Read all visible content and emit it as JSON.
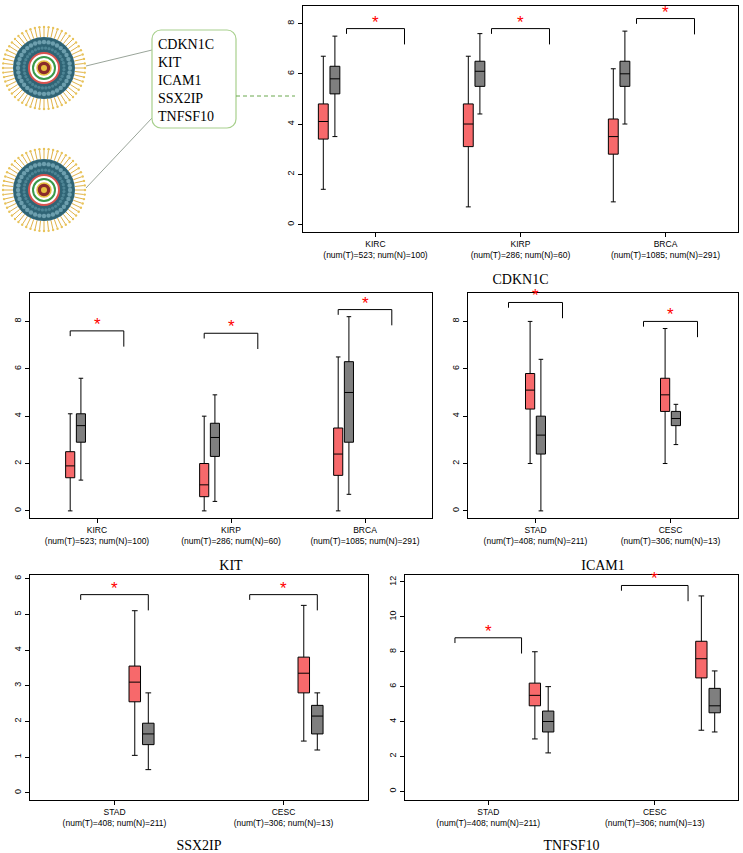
{
  "diagram": {
    "genes": [
      "CDKN1C",
      "KIT",
      "ICAM1",
      "SSX2IP",
      "TNFSF10"
    ]
  },
  "chart_data": [
    {
      "type": "box",
      "title": "CDKN1C",
      "categories": [
        "KIRC\n(num(T)=523; num(N)=100)",
        "KIRP\n(num(T)=286; num(N)=60)",
        "BRCA\n(num(T)=1085; num(N)=291)"
      ],
      "series": [
        {
          "color": "#F7696B",
          "q1": [
            3.4,
            3.1,
            2.8
          ],
          "median": [
            4.1,
            4.0,
            3.5
          ],
          "q3": [
            4.8,
            4.8,
            4.2
          ],
          "lowerfence": [
            1.4,
            0.7,
            0.9
          ],
          "upperfence": [
            6.7,
            6.7,
            6.2
          ]
        },
        {
          "color": "#7F7F7F",
          "q1": [
            5.2,
            5.5,
            5.5
          ],
          "median": [
            5.8,
            6.1,
            6.0
          ],
          "q3": [
            6.3,
            6.5,
            6.5
          ],
          "lowerfence": [
            3.5,
            4.4,
            4.0
          ],
          "upperfence": [
            7.5,
            7.6,
            7.7
          ]
        }
      ],
      "significance": {
        "y": [
          7.8,
          7.8,
          8.2
        ],
        "labels": [
          "*",
          "*",
          "*"
        ],
        "color": "#FF0000"
      },
      "ylim": [
        -0.3,
        8.7
      ],
      "yticks": [
        0,
        2,
        4,
        6,
        8
      ],
      "grid": false
    },
    {
      "type": "box",
      "title": "KIT",
      "categories": [
        "KIRC\n(num(T)=523; num(N)=100)",
        "KIRP\n(num(T)=286; num(N)=60)",
        "BRCA\n(num(T)=1085; num(N)=291)"
      ],
      "series": [
        {
          "color": "#F7696B",
          "q1": [
            1.4,
            0.6,
            1.5
          ],
          "median": [
            1.9,
            1.1,
            2.4
          ],
          "q3": [
            2.5,
            2.0,
            3.5
          ],
          "lowerfence": [
            0,
            0,
            0
          ],
          "upperfence": [
            4.1,
            4.0,
            6.5
          ]
        },
        {
          "color": "#7F7F7F",
          "q1": [
            2.9,
            2.3,
            2.9
          ],
          "median": [
            3.6,
            3.1,
            5.0
          ],
          "q3": [
            4.1,
            3.7,
            6.3
          ],
          "lowerfence": [
            1.3,
            0.4,
            0.7
          ],
          "upperfence": [
            5.6,
            4.9,
            8.2
          ]
        }
      ],
      "significance": {
        "y": [
          7.6,
          7.5,
          8.5
        ],
        "labels": [
          "*",
          "*",
          "*"
        ],
        "color": "#FF0000"
      },
      "ylim": [
        -0.3,
        9.2
      ],
      "yticks": [
        0,
        2,
        4,
        6,
        8
      ],
      "grid": false
    },
    {
      "type": "box",
      "title": "ICAM1",
      "categories": [
        "STAD\n(num(T)=408; num(N)=211)",
        "CESC\n(num(T)=306; num(N)=13)"
      ],
      "series": [
        {
          "color": "#F7696B",
          "q1": [
            4.3,
            4.2
          ],
          "median": [
            5.1,
            4.9
          ],
          "q3": [
            5.8,
            5.6
          ],
          "lowerfence": [
            2.0,
            2.0
          ],
          "upperfence": [
            8.0,
            7.7
          ]
        },
        {
          "color": "#7F7F7F",
          "q1": [
            2.4,
            3.6
          ],
          "median": [
            3.2,
            3.9
          ],
          "q3": [
            4.0,
            4.2
          ],
          "lowerfence": [
            0,
            2.8
          ],
          "upperfence": [
            6.4,
            4.5
          ]
        }
      ],
      "significance": {
        "y": [
          8.8,
          8.0
        ],
        "labels": [
          "*",
          "*"
        ],
        "color": "#FF0000"
      },
      "ylim": [
        -0.3,
        9.2
      ],
      "yticks": [
        0,
        2,
        4,
        6,
        8
      ],
      "grid": false
    },
    {
      "type": "box",
      "title": "SSX2IP",
      "categories": [
        "STAD\n(num(T)=408; num(N)=211)",
        "CESC\n(num(T)=306; num(N)=13)"
      ],
      "series": [
        {
          "color": "#F7696B",
          "q1": [
            2.55,
            2.8
          ],
          "median": [
            3.1,
            3.35
          ],
          "q3": [
            3.55,
            3.8
          ],
          "lowerfence": [
            1.05,
            1.45
          ],
          "upperfence": [
            5.1,
            5.25
          ]
        },
        {
          "color": "#7F7F7F",
          "q1": [
            1.35,
            1.65
          ],
          "median": [
            1.65,
            2.15
          ],
          "q3": [
            1.95,
            2.45
          ],
          "lowerfence": [
            0.65,
            1.2
          ],
          "upperfence": [
            2.8,
            2.8
          ]
        }
      ],
      "significance": {
        "y": [
          5.55,
          5.55
        ],
        "labels": [
          "*",
          "*"
        ],
        "color": "#FF0000"
      },
      "ylim": [
        -0.2,
        6.1
      ],
      "yticks": [
        0,
        1,
        2,
        3,
        4,
        5,
        6
      ],
      "grid": false
    },
    {
      "type": "box",
      "title": "TNFSF10",
      "categories": [
        "STAD\n(num(T)=408; num(N)=211)",
        "CESC\n(num(T)=306; num(N)=13)"
      ],
      "series": [
        {
          "color": "#F7696B",
          "q1": [
            4.9,
            6.5
          ],
          "median": [
            5.5,
            7.6
          ],
          "q3": [
            6.2,
            8.6
          ],
          "lowerfence": [
            3.0,
            3.5
          ],
          "upperfence": [
            8.0,
            11.2
          ]
        },
        {
          "color": "#7F7F7F",
          "q1": [
            3.4,
            4.5
          ],
          "median": [
            4.0,
            4.9
          ],
          "q3": [
            4.6,
            5.9
          ],
          "lowerfence": [
            2.2,
            3.4
          ],
          "upperfence": [
            6.0,
            6.9
          ]
        }
      ],
      "significance": {
        "y": [
          8.8,
          11.8
        ],
        "labels": [
          "*",
          "*"
        ],
        "color": "#FF0000"
      },
      "ylim": [
        -0.5,
        12.4
      ],
      "yticks": [
        0,
        2,
        4,
        6,
        8,
        10,
        12
      ],
      "grid": false
    }
  ]
}
